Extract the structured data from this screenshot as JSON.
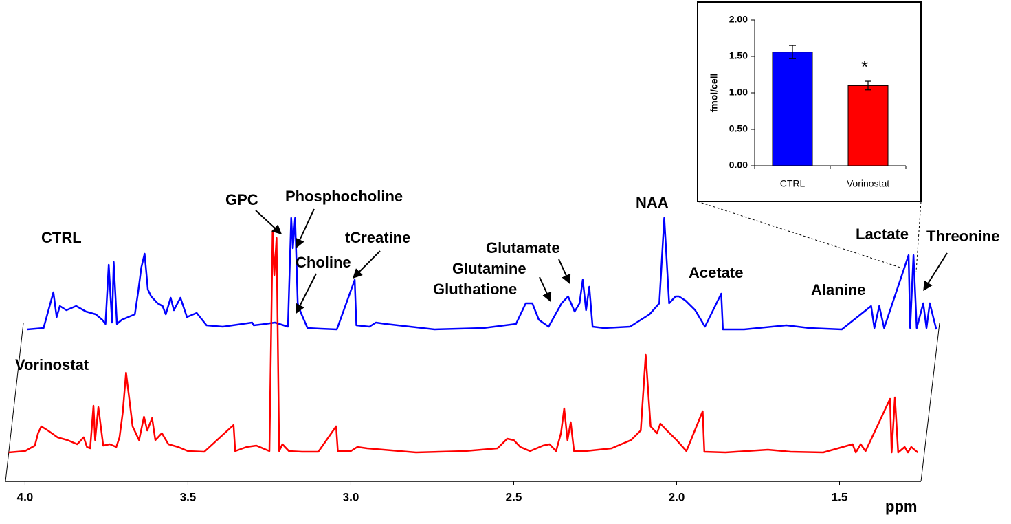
{
  "chart_data": [
    {
      "type": "line",
      "xlabel": "ppm",
      "xlim": [
        4.06,
        1.25
      ],
      "xticks": [
        {
          "value": 4,
          "label": "4.0"
        },
        3.5,
        {
          "value": 3,
          "label": "3.0"
        },
        2.5,
        {
          "value": 2,
          "label": "2.0"
        },
        1.5
      ],
      "ylim": [
        0,
        180
      ],
      "x": [
        4.05,
        4.0,
        3.97,
        3.96,
        3.95,
        3.93,
        3.9,
        3.87,
        3.84,
        3.82,
        3.81,
        3.8,
        3.79,
        3.785,
        3.775,
        3.76,
        3.74,
        3.72,
        3.71,
        3.7,
        3.69,
        3.68,
        3.67,
        3.65,
        3.635,
        3.625,
        3.61,
        3.6,
        3.58,
        3.56,
        3.53,
        3.5,
        3.45,
        3.36,
        3.355,
        3.32,
        3.29,
        3.25,
        3.24,
        3.235,
        3.228,
        3.22,
        3.21,
        3.19,
        3.15,
        3.1,
        3.045,
        3.04,
        3.0,
        2.98,
        2.95,
        2.8,
        2.65,
        2.55,
        2.52,
        2.5,
        2.48,
        2.45,
        2.41,
        2.39,
        2.37,
        2.355,
        2.345,
        2.335,
        2.325,
        2.315,
        2.28,
        2.2,
        2.14,
        2.11,
        2.095,
        2.08,
        2.06,
        2.05,
        2.03,
        2.0,
        1.97,
        1.92,
        1.915,
        1.85,
        1.72,
        1.65,
        1.55,
        1.46,
        1.45,
        1.435,
        1.42,
        1.345,
        1.34,
        1.33,
        1.32,
        1.3,
        1.29,
        1.28,
        1.26
      ],
      "series": [
        {
          "name": "CTRL",
          "color": "#0000ff",
          "values": [
            1,
            2,
            28,
            10,
            18,
            15,
            18,
            14,
            12,
            8,
            5,
            48,
            6,
            50,
            5,
            8,
            10,
            12,
            28,
            46,
            56,
            30,
            25,
            20,
            18,
            12,
            24,
            15,
            24,
            10,
            13,
            4,
            3,
            6,
            4,
            5,
            6,
            3,
            82,
            60,
            82,
            20,
            13,
            2,
            1.5,
            1,
            37,
            4,
            3,
            6,
            5,
            1,
            2,
            5,
            20,
            20,
            8,
            3,
            20,
            25,
            14,
            20,
            37,
            15,
            32,
            3,
            2,
            3,
            12,
            20,
            82,
            20,
            25,
            25,
            22,
            15,
            3,
            27,
            1,
            1,
            4,
            2,
            1,
            18,
            2,
            18,
            2,
            55,
            2,
            55,
            2,
            20,
            2,
            20,
            1
          ]
        },
        {
          "name": "Vorinostat",
          "color": "#ff0000",
          "values": [
            1,
            2,
            6,
            15,
            20,
            17,
            12,
            10,
            7,
            12,
            5,
            4,
            35,
            10,
            34,
            6,
            7,
            5,
            12,
            30,
            59,
            40,
            20,
            10,
            27,
            17,
            26,
            10,
            15,
            7,
            5,
            2,
            1.5,
            21,
            2,
            5,
            6,
            2,
            162,
            130,
            157,
            2,
            7,
            2,
            1.5,
            1.5,
            20,
            2,
            2,
            5,
            4,
            1,
            2,
            4,
            11,
            10,
            5,
            2,
            6,
            7,
            2,
            15,
            33,
            10,
            23,
            2,
            2,
            4,
            10,
            17,
            72,
            20,
            15,
            22,
            17,
            10,
            2,
            31,
            1.5,
            1,
            3,
            1.5,
            1,
            7,
            1,
            7,
            2,
            40,
            1,
            41,
            1,
            5,
            1,
            5,
            1
          ]
        }
      ],
      "annotations": [
        "GPC",
        "Phosphocholine",
        "Choline",
        "tCreatine",
        "Glutamate",
        "Glutamine",
        "Gluthatione",
        "NAA",
        "Acetate",
        "Alanine",
        "Lactate",
        "Threonine"
      ]
    },
    {
      "type": "bar",
      "ylabel": "fmol/cell",
      "categories": [
        "CTRL",
        "Vorinostat"
      ],
      "values": [
        1.56,
        1.1
      ],
      "errors": [
        0.09,
        0.06
      ],
      "colors": [
        "#0000ff",
        "#ff0000"
      ],
      "ylim": [
        0,
        2
      ],
      "yticks": [
        {
          "value": 0,
          "label": "0.00"
        },
        {
          "value": 0.5,
          "label": "0.50"
        },
        {
          "value": 1,
          "label": "1.00"
        },
        {
          "value": 1.5,
          "label": "1.50"
        },
        {
          "value": 2,
          "label": "2.00"
        }
      ],
      "annotations": [
        "*"
      ]
    }
  ]
}
